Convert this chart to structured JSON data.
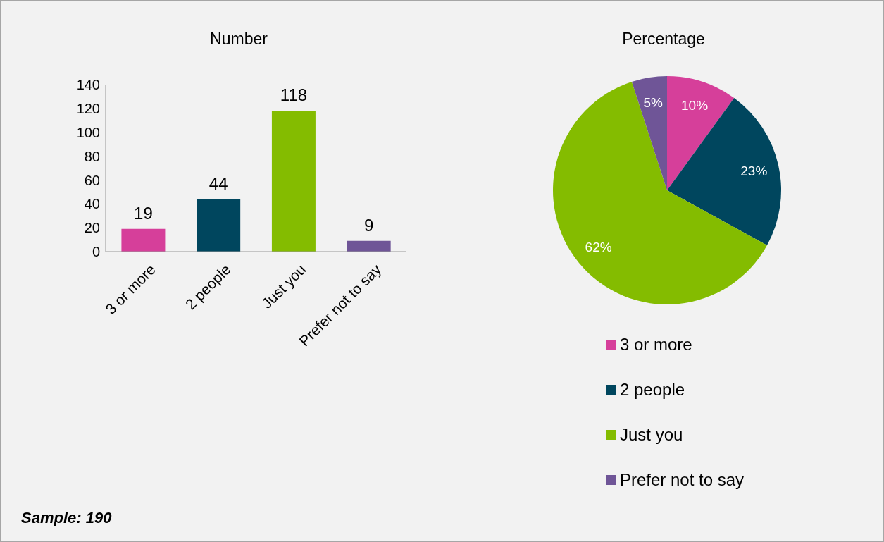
{
  "chart_data": [
    {
      "type": "bar",
      "title": "Number",
      "categories": [
        "3 or more",
        "2 people",
        "Just you",
        "Prefer not to say"
      ],
      "values": [
        19,
        44,
        118,
        9
      ],
      "colors": [
        "#d63f9a",
        "#00465e",
        "#84bc00",
        "#6f5597"
      ],
      "ylim": [
        0,
        140
      ],
      "yticks": [
        0,
        20,
        40,
        60,
        80,
        100,
        120,
        140
      ],
      "grid": false,
      "data_labels": true,
      "annotations": [
        "Sample: 190"
      ]
    },
    {
      "type": "pie",
      "title": "Percentage",
      "categories": [
        "3 or more",
        "2 people",
        "Just you",
        "Prefer not to say"
      ],
      "values": [
        10,
        23,
        62,
        5
      ],
      "colors": [
        "#d63f9a",
        "#00465e",
        "#84bc00",
        "#6f5597"
      ],
      "value_labels": [
        "10%",
        "23%",
        "62%",
        "5%"
      ],
      "legend": "bottom"
    }
  ]
}
